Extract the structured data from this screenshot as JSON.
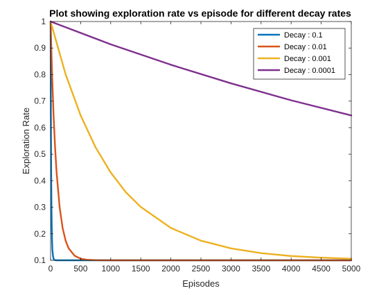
{
  "chart_data": {
    "type": "line",
    "title": "Plot showing exploration rate vs episode for different decay rates",
    "xlabel": "Episodes",
    "ylabel": "Exploration Rate",
    "xlim": [
      0,
      5000
    ],
    "ylim": [
      0.1,
      1
    ],
    "xticks": [
      0,
      500,
      1000,
      1500,
      2000,
      2500,
      3000,
      3500,
      4000,
      4500,
      5000
    ],
    "yticks": [
      0.1,
      0.2,
      0.3,
      0.4,
      0.5,
      0.6,
      0.7,
      0.8,
      0.9,
      1
    ],
    "xtick_labels": [
      "0",
      "500",
      "1000",
      "1500",
      "2000",
      "2500",
      "3000",
      "3500",
      "4000",
      "4500",
      "5000"
    ],
    "ytick_labels": [
      "0.1",
      "0.2",
      "0.3",
      "0.4",
      "0.5",
      "0.6",
      "0.7",
      "0.8",
      "0.9",
      "1"
    ],
    "grid": false,
    "legend_position": "top-right",
    "series": [
      {
        "name": "Decay : 0.1",
        "color": "#0072BD",
        "x": [
          0,
          5,
          10,
          15,
          20,
          25,
          30,
          40,
          50,
          60,
          80,
          100,
          150,
          5000
        ],
        "y": [
          1,
          0.646,
          0.431,
          0.3,
          0.22,
          0.171,
          0.14,
          0.117,
          0.106,
          0.102,
          0.1003,
          0.1,
          0.1,
          0.1
        ]
      },
      {
        "name": "Decay : 0.01",
        "color": "#D95319",
        "x": [
          0,
          25,
          50,
          75,
          100,
          150,
          200,
          250,
          300,
          400,
          500,
          600,
          800,
          1000,
          5000
        ],
        "y": [
          1,
          0.801,
          0.646,
          0.525,
          0.431,
          0.301,
          0.222,
          0.174,
          0.145,
          0.117,
          0.106,
          0.102,
          0.1003,
          0.1,
          0.1
        ]
      },
      {
        "name": "Decay : 0.001",
        "color": "#EDB120",
        "x": [
          0,
          250,
          500,
          750,
          1000,
          1250,
          1500,
          2000,
          2500,
          3000,
          3500,
          4000,
          4500,
          5000
        ],
        "y": [
          1,
          0.801,
          0.646,
          0.525,
          0.431,
          0.357,
          0.301,
          0.222,
          0.174,
          0.145,
          0.127,
          0.116,
          0.11,
          0.106
        ]
      },
      {
        "name": "Decay : 0.0001",
        "color": "#7E2F8E",
        "x": [
          0,
          1000,
          2000,
          3000,
          4000,
          5000
        ],
        "y": [
          1,
          0.914,
          0.837,
          0.767,
          0.703,
          0.646
        ]
      }
    ]
  }
}
